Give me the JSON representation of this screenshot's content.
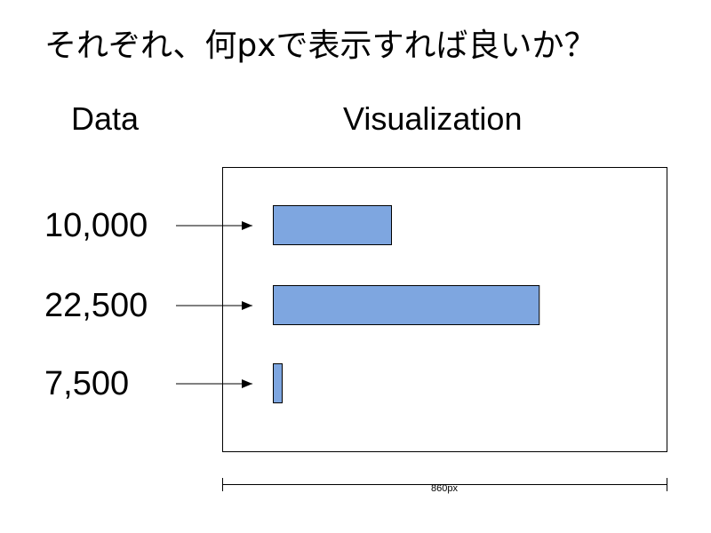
{
  "title": "それぞれ、何pxで表示すれば良いか？",
  "headers": {
    "data": "Data",
    "visualization": "Visualization"
  },
  "rows": [
    {
      "label": "10,000",
      "value": 10000
    },
    {
      "label": "22,500",
      "value": 22500
    },
    {
      "label": "7,500",
      "value": 7500
    }
  ],
  "dimension_label": "860px",
  "colors": {
    "bar_fill": "#7ea6e0",
    "stroke": "#000000"
  }
}
